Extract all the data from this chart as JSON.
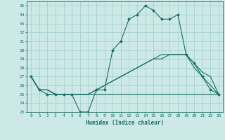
{
  "x": [
    0,
    1,
    2,
    3,
    4,
    5,
    6,
    7,
    8,
    9,
    10,
    11,
    12,
    13,
    14,
    15,
    16,
    17,
    18,
    19,
    20,
    21,
    22,
    23
  ],
  "main_line": [
    27,
    25.5,
    25,
    25,
    25,
    25,
    23,
    23,
    25.5,
    25.5,
    30,
    31,
    33.5,
    34,
    35,
    34.5,
    33.5,
    33.5,
    34,
    29.5,
    28.5,
    27,
    25.5,
    25
  ],
  "line2": [
    27,
    25.5,
    25.5,
    25,
    25,
    25,
    25,
    25,
    25,
    25,
    25,
    25,
    25,
    25,
    25,
    25,
    25,
    25,
    25,
    25,
    25,
    25,
    25,
    25
  ],
  "line3": [
    27,
    25.5,
    25.5,
    25,
    25,
    25,
    25,
    25,
    25.5,
    26,
    26.5,
    27,
    27.5,
    28,
    28.5,
    29,
    29,
    29.5,
    29.5,
    29.5,
    28.5,
    27.5,
    27,
    25
  ],
  "line4": [
    27,
    25.5,
    25.5,
    25,
    25,
    25,
    25,
    25,
    25.5,
    26,
    26.5,
    27,
    27.5,
    28,
    28.5,
    29,
    29.5,
    29.5,
    29.5,
    29.5,
    28,
    27,
    26,
    25
  ],
  "bg_color": "#cce9e7",
  "grid_color": "#aad4d1",
  "line_color": "#1a6e65",
  "xlim": [
    -0.5,
    23.5
  ],
  "ylim": [
    23,
    35.5
  ],
  "yticks": [
    23,
    24,
    25,
    26,
    27,
    28,
    29,
    30,
    31,
    32,
    33,
    34,
    35
  ],
  "xticks": [
    0,
    1,
    2,
    3,
    4,
    5,
    6,
    7,
    8,
    9,
    10,
    11,
    12,
    13,
    14,
    15,
    16,
    17,
    18,
    19,
    20,
    21,
    22,
    23
  ],
  "xlabel": "Humidex (Indice chaleur)"
}
